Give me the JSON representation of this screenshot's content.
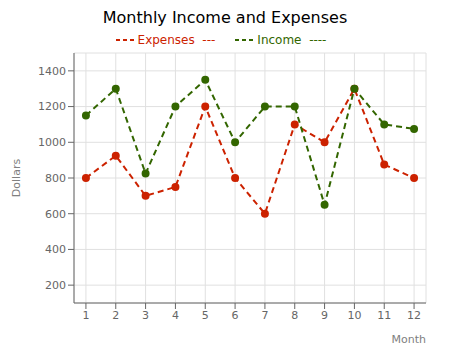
{
  "chart_data": {
    "type": "line",
    "title": "Monthly Income and Expenses",
    "xlabel": "Month",
    "ylabel": "Dollars",
    "x": [
      1,
      2,
      3,
      4,
      5,
      6,
      7,
      8,
      9,
      10,
      11,
      12
    ],
    "series": [
      {
        "name": "Expenses  ---",
        "color": "#cc2200",
        "line_style": "dashed",
        "marker": "circle",
        "values": [
          800,
          925,
          700,
          750,
          1200,
          800,
          600,
          1100,
          1000,
          1300,
          875,
          800
        ]
      },
      {
        "name": "Income  ----",
        "color": "#336600",
        "line_style": "dashed",
        "marker": "circle",
        "values": [
          1150,
          1300,
          825,
          1200,
          1350,
          1000,
          1200,
          1200,
          650,
          1300,
          1100,
          1075
        ]
      }
    ],
    "xlim": [
      0.6,
      12.4
    ],
    "xticks": [
      1,
      2,
      3,
      4,
      5,
      6,
      7,
      8,
      9,
      10,
      11,
      12
    ],
    "ylim": [
      100,
      1500
    ],
    "yticks": [
      200,
      400,
      600,
      800,
      1000,
      1200,
      1400
    ],
    "grid": true,
    "legend": "top"
  }
}
